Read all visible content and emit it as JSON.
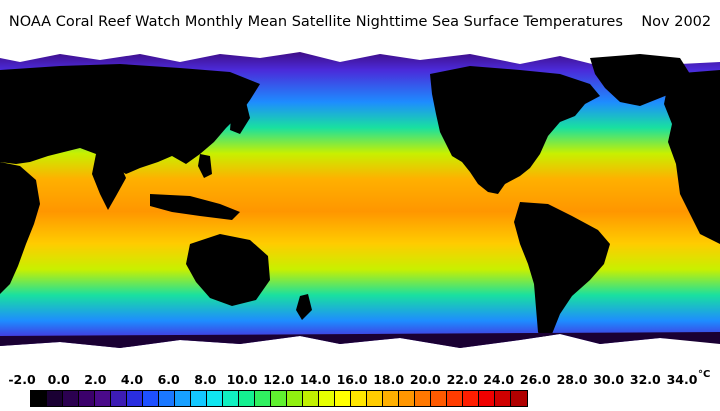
{
  "title": "NOAA Coral Reef Watch Monthly Mean Satellite Nighttime Sea Surface Temperatures    Nov 2002",
  "colorbar": {
    "tick_labels": [
      "-2.0",
      "0.0",
      "2.0",
      "4.0",
      "6.0",
      "8.0",
      "10.0",
      "12.0",
      "14.0",
      "16.0",
      "18.0",
      "20.0",
      "22.0",
      "24.0",
      "26.0",
      "28.0",
      "30.0",
      "32.0",
      "34.0"
    ],
    "unit": "°C",
    "colors": [
      "#000000",
      "#1a0033",
      "#2b0050",
      "#3b006b",
      "#4a0a8a",
      "#3d1cb5",
      "#2a2ee0",
      "#1e50ff",
      "#1a78ff",
      "#17a0ff",
      "#14c8ff",
      "#10e6f0",
      "#10f0c0",
      "#14f090",
      "#30f060",
      "#60f030",
      "#90f010",
      "#c0f000",
      "#e6ff00",
      "#ffff00",
      "#ffe600",
      "#ffcc00",
      "#ffb000",
      "#ff9600",
      "#ff7800",
      "#ff5a00",
      "#ff3c00",
      "#ff1e00",
      "#f00000",
      "#d00000",
      "#b00000"
    ]
  },
  "map": {
    "ocean_colors": {
      "polar": "#3a0060",
      "cold": "#4b2ad9",
      "cool": "#1e8cff",
      "temperate": "#19e0a0",
      "warm": "#c8f000",
      "tropical": "#ff9900",
      "land": "#000000",
      "ice": "#ffffff"
    }
  }
}
